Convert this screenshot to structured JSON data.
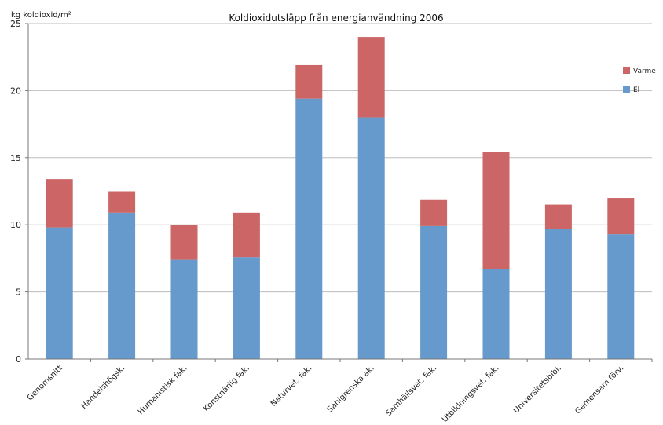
{
  "chart_data": {
    "type": "bar",
    "stacked": true,
    "title": "Koldioxidutsläpp från energianvändning 2006",
    "ylabel": "kg koldioxid/m²",
    "xlabel": "",
    "ylim": [
      0,
      25
    ],
    "yticks": [
      0,
      5,
      10,
      15,
      20,
      25
    ],
    "grid": true,
    "legend_position": "right",
    "categories": [
      "Genomsnitt",
      "Handelshögsk.",
      "Humanistisk fak.",
      "Konstnärlig fak.",
      "Naturvet. fak.",
      "Sahlgrenska ak.",
      "Samhällsvet. fak.",
      "Utbildningsvet. fak.",
      "Universitetsbibl.",
      "Gemensam förv."
    ],
    "series": [
      {
        "name": "El",
        "color": "#6699cc",
        "values": [
          9.8,
          10.9,
          7.4,
          7.6,
          19.4,
          18.0,
          9.9,
          6.7,
          9.7,
          9.3
        ]
      },
      {
        "name": "Värme",
        "color": "#cc6666",
        "values": [
          3.6,
          1.6,
          2.6,
          3.3,
          2.5,
          6.0,
          2.0,
          8.7,
          1.8,
          2.7
        ]
      }
    ]
  }
}
